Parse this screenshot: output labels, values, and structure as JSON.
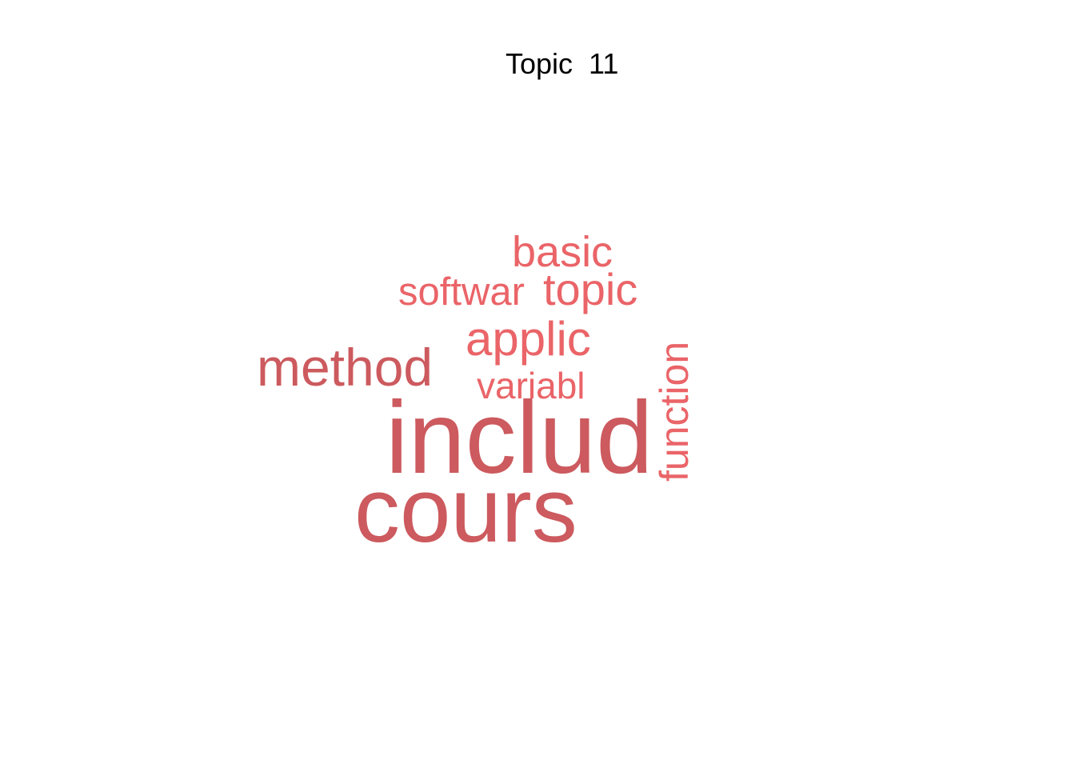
{
  "title": "Topic  11",
  "colors": {
    "dark_word": "#cc5a5e",
    "light_word": "#ea6468",
    "background": "#ffffff",
    "title_text": "#000000"
  },
  "words": {
    "includ": "includ",
    "cours": "cours",
    "method": "method",
    "applic": "applic",
    "topic": "topic",
    "basic": "basic",
    "softwar": "softwar",
    "variabl": "variabl",
    "function": "function"
  }
}
